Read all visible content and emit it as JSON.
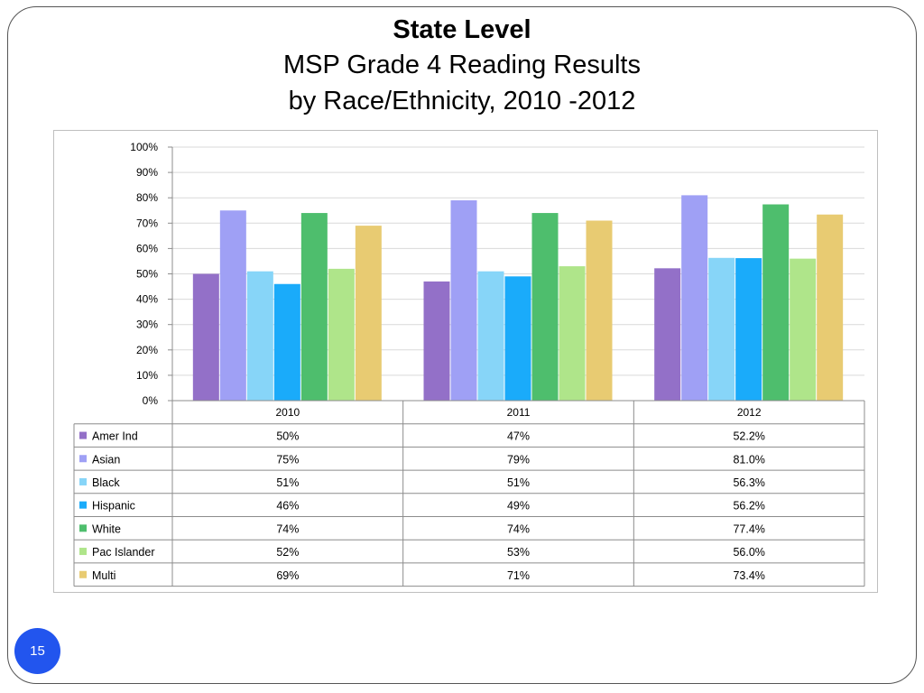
{
  "slide": {
    "title_line1": "State Level",
    "title_line2": "MSP Grade 4 Reading Results",
    "title_line3": "by Race/Ethnicity, 2010 -2012",
    "page_number": "15"
  },
  "colors": {
    "Amer Ind": "#9370c8",
    "Asian": "#9fa0f5",
    "Black": "#87d5f8",
    "Hispanic": "#1aabfa",
    "White": "#4ebe6d",
    "Pac Islander": "#afe58a",
    "Multi": "#e8cb72",
    "page_badge": "#2255ee"
  },
  "chart_data": {
    "type": "bar",
    "categories": [
      "2010",
      "2011",
      "2012"
    ],
    "ylim": [
      0,
      100
    ],
    "yticks": [
      "0%",
      "10%",
      "20%",
      "30%",
      "40%",
      "50%",
      "60%",
      "70%",
      "80%",
      "90%",
      "100%"
    ],
    "grid": true,
    "legend": "data-table-below",
    "series": [
      {
        "name": "Amer Ind",
        "values": [
          50,
          47,
          52.2
        ],
        "labels": [
          "50%",
          "47%",
          "52.2%"
        ]
      },
      {
        "name": "Asian",
        "values": [
          75,
          79,
          81.0
        ],
        "labels": [
          "75%",
          "79%",
          "81.0%"
        ]
      },
      {
        "name": "Black",
        "values": [
          51,
          51,
          56.3
        ],
        "labels": [
          "51%",
          "51%",
          "56.3%"
        ]
      },
      {
        "name": "Hispanic",
        "values": [
          46,
          49,
          56.2
        ],
        "labels": [
          "46%",
          "49%",
          "56.2%"
        ]
      },
      {
        "name": "White",
        "values": [
          74,
          74,
          77.4
        ],
        "labels": [
          "74%",
          "74%",
          "77.4%"
        ]
      },
      {
        "name": "Pac Islander",
        "values": [
          52,
          53,
          56.0
        ],
        "labels": [
          "52%",
          "53%",
          "56.0%"
        ]
      },
      {
        "name": "Multi",
        "values": [
          69,
          71,
          73.4
        ],
        "labels": [
          "69%",
          "71%",
          "73.4%"
        ]
      }
    ]
  }
}
